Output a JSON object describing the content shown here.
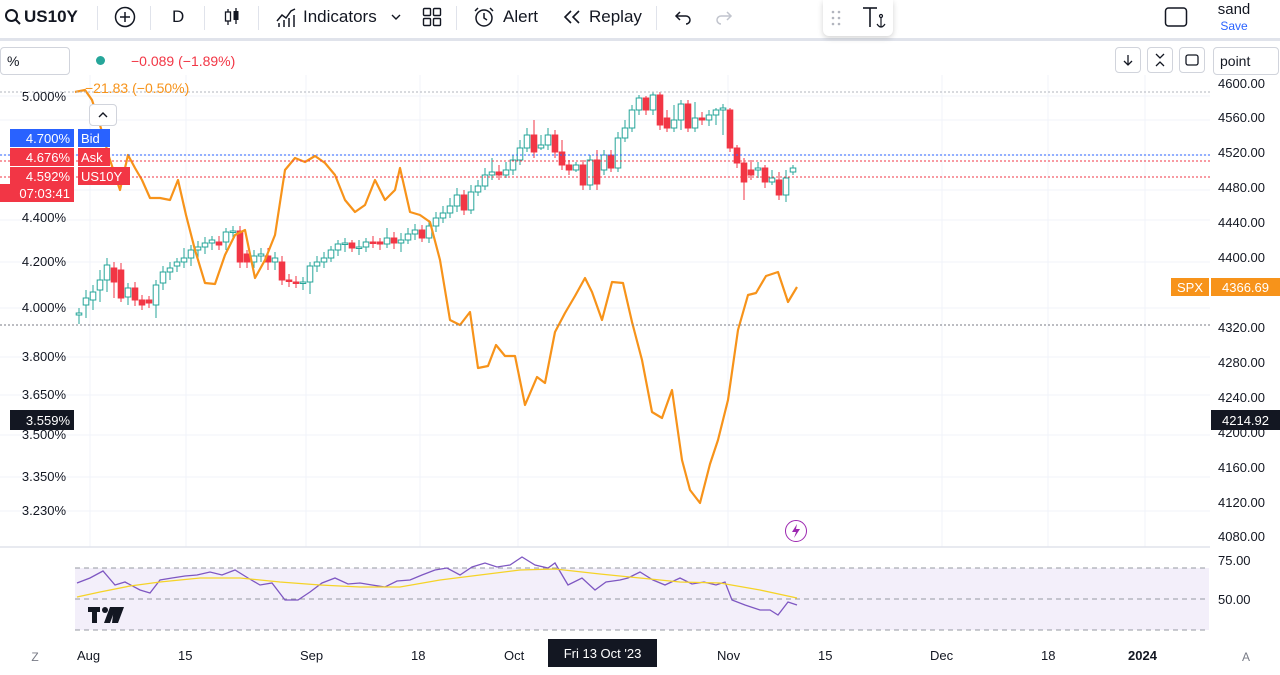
{
  "toolbar": {
    "symbol": "US10Y",
    "interval": "D",
    "indicators_label": "Indicators",
    "alert_label": "Alert",
    "replay_label": "Replay",
    "user_name": "sand",
    "save_label": "Save"
  },
  "scale_mode_left": "%",
  "scale_mode_right": "point",
  "legend": {
    "us10y_change": "−0.089 (−1.89%)",
    "spx_change": "−21.83 (−0.50%)"
  },
  "price_tags": {
    "bid_value": "4.700%",
    "bid_label": "Bid",
    "ask_value": "4.676%",
    "ask_label": "Ask",
    "last_value": "4.592%",
    "last_label": "US10Y",
    "countdown": "07:03:41",
    "crosshair_left": "3.559%",
    "spx_value": "4366.69",
    "spx_label": "SPX",
    "crosshair_right": "4214.92"
  },
  "left_axis": [
    "5.000%",
    "4.400%",
    "4.200%",
    "4.000%",
    "3.800%",
    "3.650%",
    "3.500%",
    "3.350%",
    "3.230%"
  ],
  "right_axis": [
    "4600.00",
    "4560.00",
    "4520.00",
    "4480.00",
    "4440.00",
    "4400.00",
    "4320.00",
    "4280.00",
    "4240.00",
    "4200.00",
    "4160.00",
    "4120.00",
    "4080.00"
  ],
  "rsi_axis": [
    "75.00",
    "50.00"
  ],
  "x_axis": [
    "Aug",
    "15",
    "Sep",
    "18",
    "Oct",
    "Nov",
    "15",
    "Dec",
    "18",
    "2024"
  ],
  "crosshair_date": "Fri 13 Oct '23",
  "corner_left": "Z",
  "corner_right": "A",
  "colors": {
    "up": "#26a69a",
    "down": "#f23645",
    "spx": "#f7931a",
    "rsi": "#7e57c2",
    "rsi_ma": "#f5d327",
    "bid": "#2962ff",
    "dark": "#131722"
  }
}
